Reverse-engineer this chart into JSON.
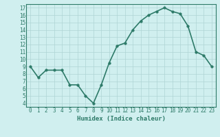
{
  "x": [
    0,
    1,
    2,
    3,
    4,
    5,
    6,
    7,
    8,
    9,
    10,
    11,
    12,
    13,
    14,
    15,
    16,
    17,
    18,
    19,
    20,
    21,
    22,
    23
  ],
  "y": [
    9,
    7.5,
    8.5,
    8.5,
    8.5,
    6.5,
    6.5,
    5,
    4,
    6.5,
    9.5,
    11.8,
    12.2,
    14,
    15.2,
    16,
    16.5,
    17,
    16.5,
    16.2,
    14.5,
    11,
    10.5,
    9
  ],
  "xlabel": "Humidex (Indice chaleur)",
  "xlim": [
    -0.5,
    23.5
  ],
  "ylim": [
    3.5,
    17.5
  ],
  "yticks": [
    4,
    5,
    6,
    7,
    8,
    9,
    10,
    11,
    12,
    13,
    14,
    15,
    16,
    17
  ],
  "xticks": [
    0,
    1,
    2,
    3,
    4,
    5,
    6,
    7,
    8,
    9,
    10,
    11,
    12,
    13,
    14,
    15,
    16,
    17,
    18,
    19,
    20,
    21,
    22,
    23
  ],
  "line_color": "#2d7a68",
  "marker_color": "#2d7a68",
  "bg_color": "#d0efef",
  "grid_color": "#aed4d4",
  "xlabel_color": "#2d7a68",
  "tick_color": "#2d7a68",
  "spine_color": "#2d7a68",
  "line_width": 1.2,
  "marker_size": 2.5,
  "xlabel_fontsize": 6.5,
  "tick_fontsize": 5.5
}
